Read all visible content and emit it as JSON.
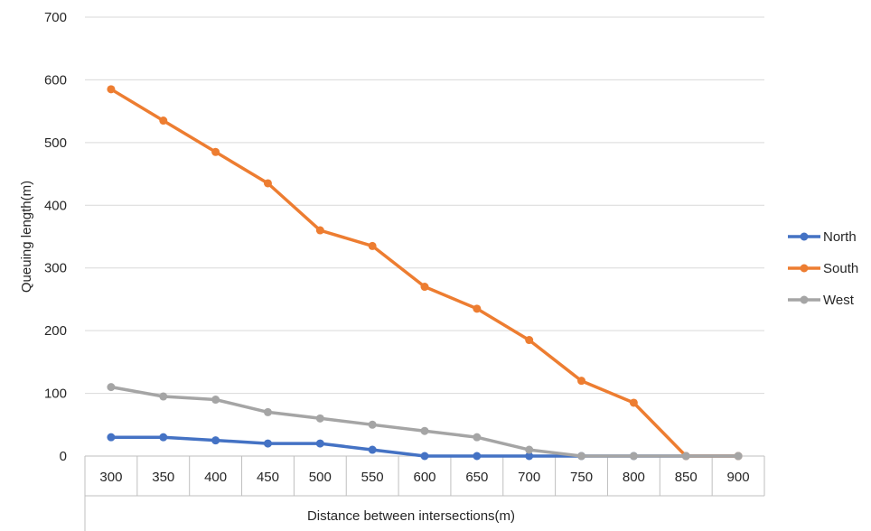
{
  "chart_data": {
    "type": "line",
    "xlabel": "Distance between intersections(m)",
    "ylabel": "Queuing length(m)",
    "x": [
      "300",
      "350",
      "400",
      "450",
      "500",
      "550",
      "600",
      "650",
      "700",
      "750",
      "800",
      "850",
      "900"
    ],
    "ylim": [
      0,
      700
    ],
    "yticks": [
      0,
      100,
      200,
      300,
      400,
      500,
      600,
      700
    ],
    "grid": "horizontal",
    "legend_position": "right",
    "series": [
      {
        "name": "North",
        "color": "#4472C4",
        "values": [
          30,
          30,
          25,
          20,
          20,
          10,
          0,
          0,
          0,
          0,
          0,
          0,
          0
        ]
      },
      {
        "name": "South",
        "color": "#ED7D31",
        "values": [
          585,
          535,
          485,
          435,
          360,
          335,
          270,
          235,
          185,
          120,
          85,
          0,
          0
        ]
      },
      {
        "name": "West",
        "color": "#A5A5A5",
        "values": [
          110,
          95,
          90,
          70,
          60,
          50,
          40,
          30,
          10,
          0,
          0,
          0,
          0
        ]
      }
    ]
  }
}
